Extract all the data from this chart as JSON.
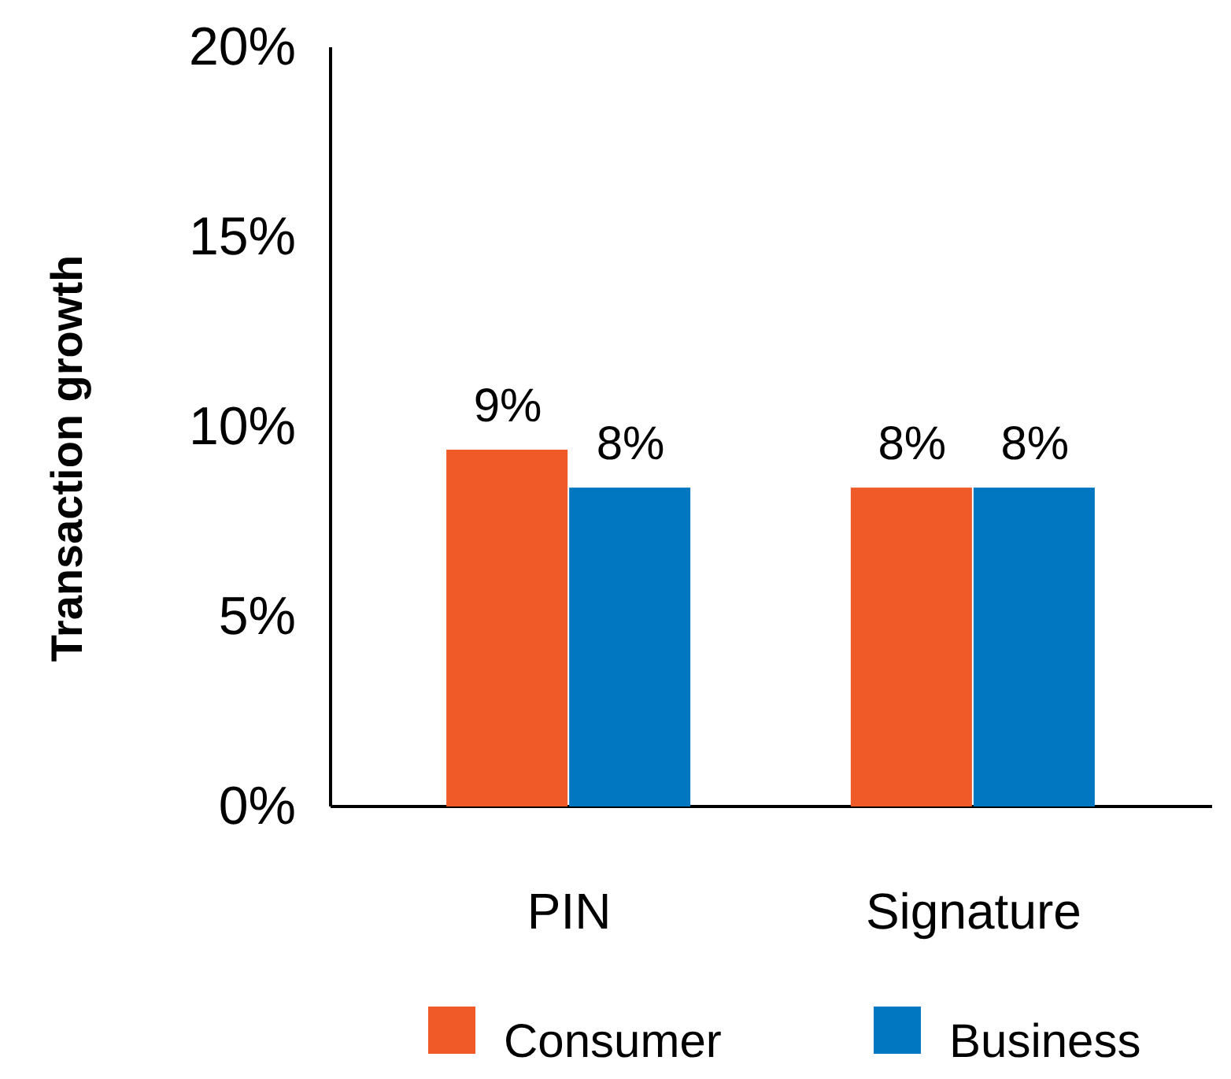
{
  "chart_data": {
    "type": "bar",
    "ylabel": "Transaction growth",
    "categories": [
      "PIN",
      "Signature"
    ],
    "series": [
      {
        "name": "Consumer",
        "color": "#f05a28",
        "values": [
          9.4,
          8.4
        ],
        "value_labels": [
          "9%",
          "8%"
        ]
      },
      {
        "name": "Business",
        "color": "#0077c0",
        "values": [
          8.4,
          8.4
        ],
        "value_labels": [
          "8%",
          "8%"
        ]
      }
    ],
    "ylim": [
      0,
      20
    ],
    "yticks": [
      {
        "value": 0,
        "label": "0%"
      },
      {
        "value": 5,
        "label": "5%"
      },
      {
        "value": 10,
        "label": "10%"
      },
      {
        "value": 15,
        "label": "15%"
      },
      {
        "value": 20,
        "label": "20%"
      }
    ],
    "grid": false,
    "legend": "bottom"
  }
}
